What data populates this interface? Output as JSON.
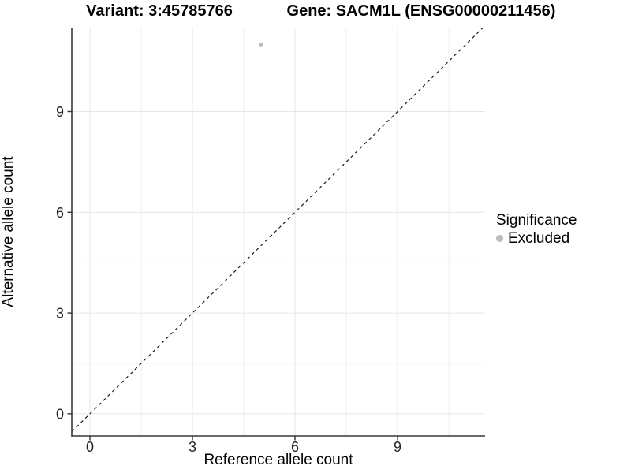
{
  "header": {
    "variant_title": "Variant: 3:45785766",
    "gene_title": "Gene: SACM1L (ENSG00000211456)"
  },
  "chart_data": {
    "type": "scatter",
    "title_left": "Variant: 3:45785766",
    "title_right": "Gene: SACM1L (ENSG00000211456)",
    "xlabel": "Reference allele count",
    "ylabel": "Alternative allele count",
    "xlim": [
      -0.53,
      11.56
    ],
    "ylim": [
      -0.66,
      11.5
    ],
    "x_ticks": [
      0,
      3,
      6,
      9
    ],
    "y_ticks": [
      0,
      3,
      6,
      9
    ],
    "x_minor_ticks": [
      1.5,
      4.5,
      7.5,
      10.5
    ],
    "y_minor_ticks": [
      1.5,
      4.5,
      7.5,
      10.5
    ],
    "grid": true,
    "reference_line": {
      "type": "identity",
      "equation": "y = x",
      "style": "dashed"
    },
    "series": [
      {
        "name": "Excluded",
        "color": "#bcbcbc",
        "points": [
          {
            "x": 5,
            "y": 11
          }
        ]
      }
    ],
    "legend": {
      "title": "Significance",
      "position": "right",
      "entries": [
        {
          "label": "Excluded",
          "color": "#bcbcbc"
        }
      ]
    },
    "colors": {
      "background": "#ffffff",
      "grid_major": "#e6e6e6",
      "grid_minor": "#f0f0f0",
      "axis_line": "#383838",
      "tick_mark": "#333333",
      "tick_label": "#262626",
      "reference_line": "#1a1a1a"
    }
  }
}
